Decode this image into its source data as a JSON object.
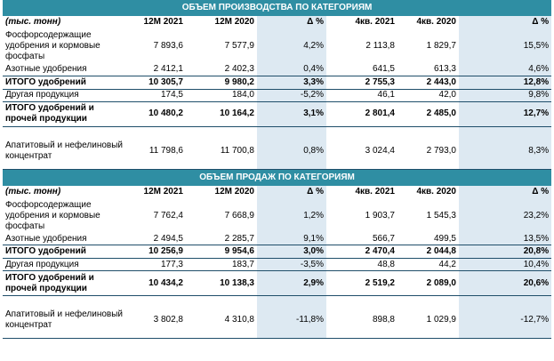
{
  "production": {
    "title": "ОБЪЕМ ПРОИЗВОДСТВА ПО КАТЕГОРИЯМ",
    "headers": [
      "(тыс. тонн)",
      "12M 2021",
      "12M 2020",
      "Δ %",
      "4кв. 2021",
      "4кв. 2020",
      "Δ %"
    ],
    "rows": [
      [
        "Фосфорсодержащие удобрения и кормовые фосфаты",
        "7 893,6",
        "7 577,9",
        "4,2%",
        "2 113,8",
        "1 829,7",
        "15,5%"
      ],
      [
        "Азотные удобрения",
        "2 412,1",
        "2 402,3",
        "0,4%",
        "641,5",
        "613,3",
        "4,6%"
      ],
      [
        "ИТОГО удобрений",
        "10 305,7",
        "9 980,2",
        "3,3%",
        "2 755,3",
        "2 443,0",
        "12,8%"
      ],
      [
        "Другая продукция",
        "174,5",
        "184,0",
        "-5,2%",
        "46,1",
        "42,0",
        "9,8%"
      ],
      [
        "ИТОГО удобрений и прочей продукции",
        "10 480,2",
        "10 164,2",
        "3,1%",
        "2 801,4",
        "2 485,0",
        "12,7%"
      ],
      [
        "Апатитовый и нефелиновый концентрат",
        "11 798,6",
        "11 700,8",
        "0,8%",
        "3 024,4",
        "2 793,0",
        "8,3%"
      ]
    ]
  },
  "sales": {
    "title": "ОБЪЕМ ПРОДАЖ ПО КАТЕГОРИЯМ",
    "headers": [
      "(тыс. тонн)",
      "12M 2021",
      "12M 2020",
      "Δ %",
      "4кв. 2021",
      "4кв. 2020",
      "Δ %"
    ],
    "rows": [
      [
        "Фосфорсодержащие удобрения и кормовые фосфаты",
        "7 762,4",
        "7 668,9",
        "1,2%",
        "1 903,7",
        "1 545,3",
        "23,2%"
      ],
      [
        "Азотные удобрения",
        "2 494,5",
        "2 285,7",
        "9,1%",
        "566,7",
        "499,5",
        "13,5%"
      ],
      [
        "ИТОГО удобрений",
        "10 256,9",
        "9 954,6",
        "3,0%",
        "2 470,4",
        "2 044,8",
        "20,8%"
      ],
      [
        "Другая продукция",
        "177,3",
        "183,7",
        "-3,5%",
        "48,8",
        "44,2",
        "10,4%"
      ],
      [
        "ИТОГО удобрений и прочей продукции",
        "10 434,2",
        "10 138,3",
        "2,9%",
        "2 519,2",
        "2 089,0",
        "20,6%"
      ],
      [
        "Апатитовый и нефелиновый концентрат",
        "3 802,8",
        "4 310,8",
        "-11,8%",
        "898,8",
        "1 029,9",
        "-12,7%"
      ]
    ]
  }
}
